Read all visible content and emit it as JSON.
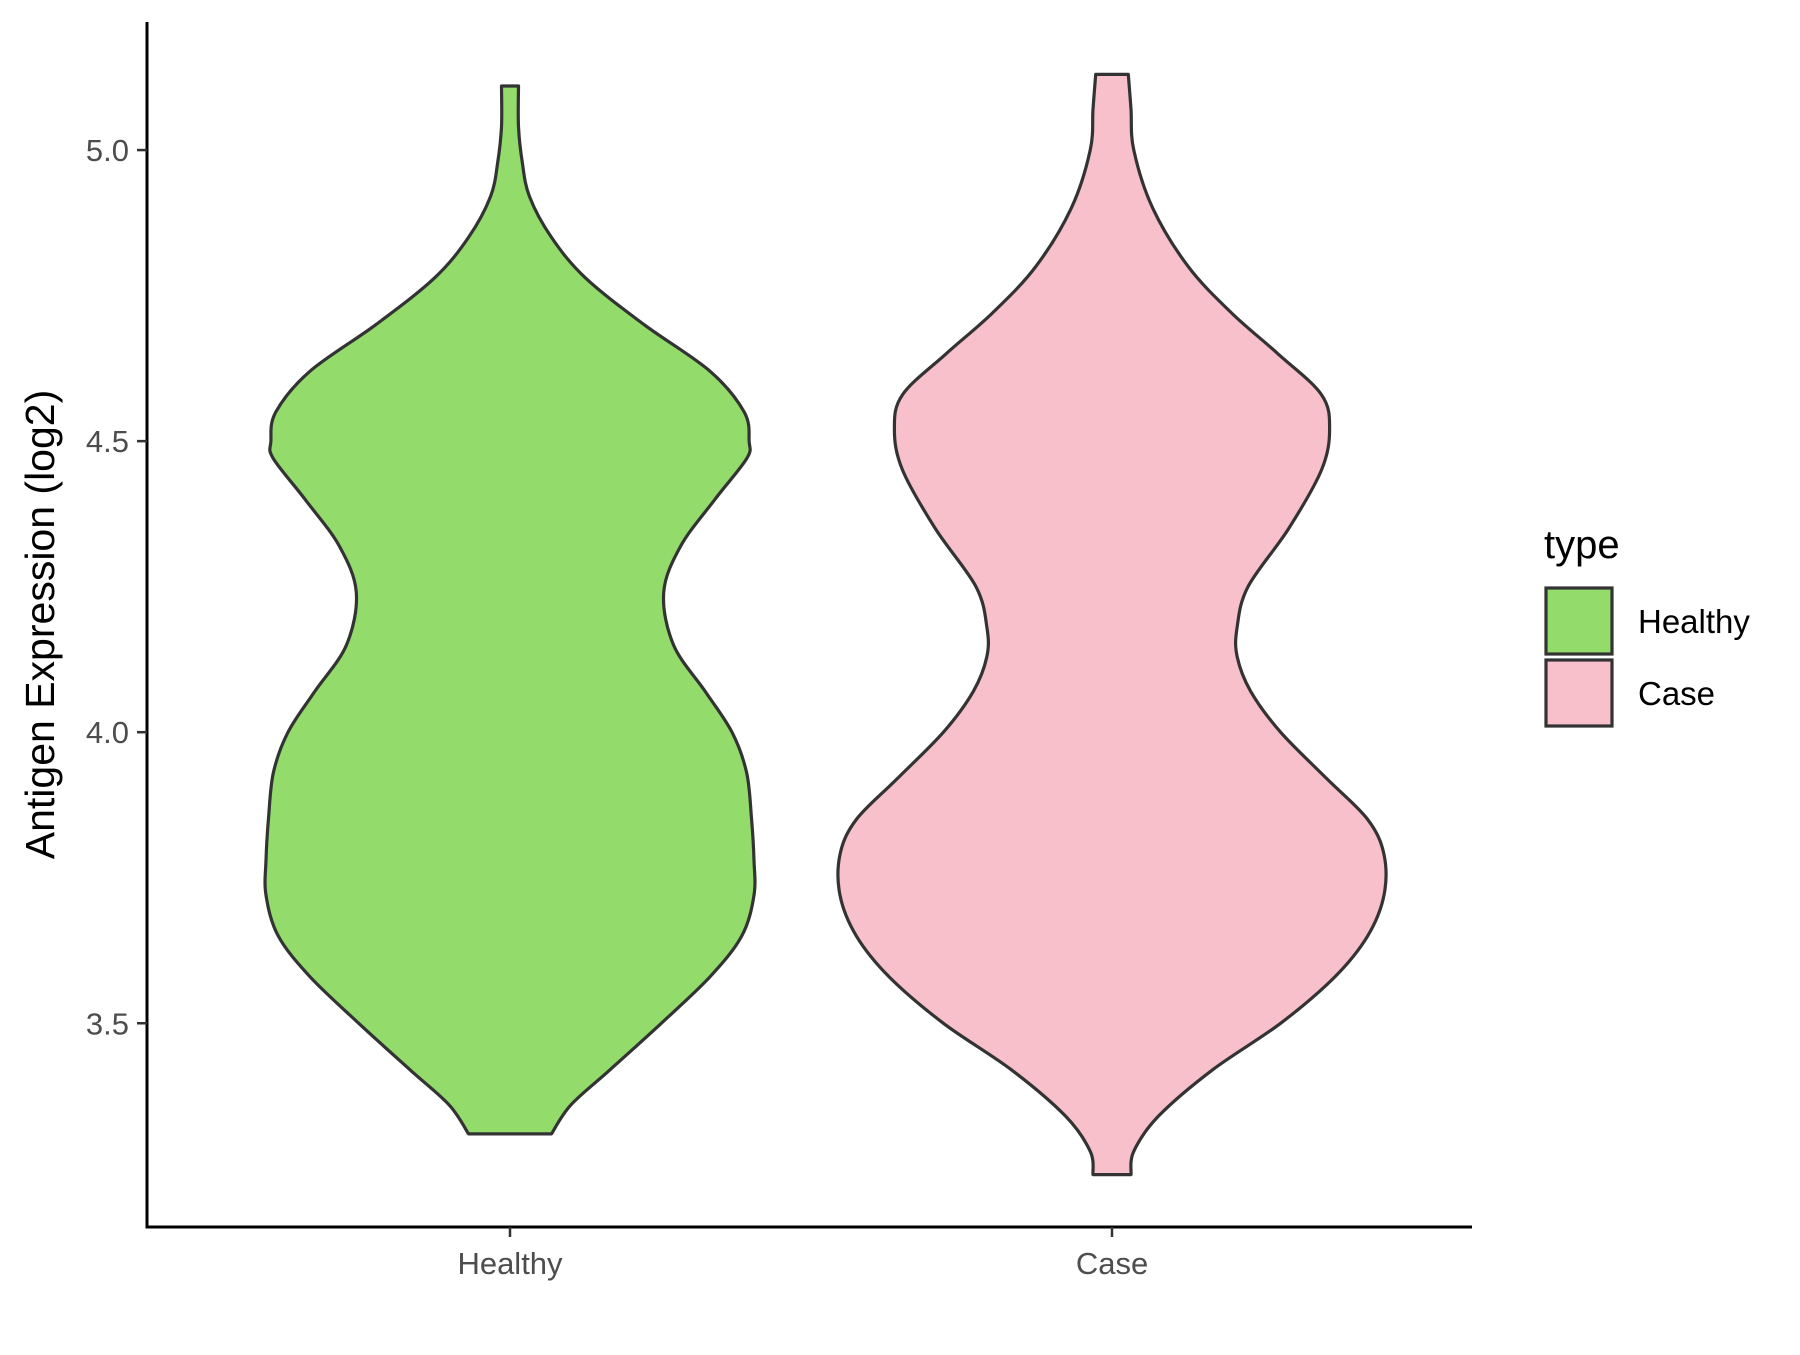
{
  "chart_data": {
    "type": "violin",
    "title": "",
    "xlabel": "",
    "ylabel": "Antigen Expression (log2)",
    "ylim": [
      3.15,
      5.22
    ],
    "y_ticks": [
      "3.5",
      "4.0",
      "4.5",
      "5.0"
    ],
    "categories": [
      "Healthy",
      "Case"
    ],
    "grid": false,
    "legend": {
      "title": "type",
      "position": "right",
      "entries": [
        {
          "label": "Healthy",
          "color": "#93dc6c"
        },
        {
          "label": "Case",
          "color": "#f8c0cb"
        }
      ]
    },
    "series": [
      {
        "name": "Healthy",
        "color": "#93dc6c",
        "ymin": 3.31,
        "ymax": 5.11,
        "density_profile": [
          [
            3.31,
            0.17
          ],
          [
            3.36,
            0.25
          ],
          [
            3.42,
            0.41
          ],
          [
            3.5,
            0.62
          ],
          [
            3.58,
            0.82
          ],
          [
            3.65,
            0.95
          ],
          [
            3.72,
            1.0
          ],
          [
            3.78,
            1.0
          ],
          [
            3.85,
            0.99
          ],
          [
            3.93,
            0.97
          ],
          [
            4.0,
            0.91
          ],
          [
            4.07,
            0.8
          ],
          [
            4.15,
            0.67
          ],
          [
            4.24,
            0.63
          ],
          [
            4.32,
            0.7
          ],
          [
            4.4,
            0.84
          ],
          [
            4.47,
            0.97
          ],
          [
            4.5,
            0.98
          ],
          [
            4.55,
            0.96
          ],
          [
            4.62,
            0.82
          ],
          [
            4.7,
            0.55
          ],
          [
            4.78,
            0.31
          ],
          [
            4.85,
            0.17
          ],
          [
            4.92,
            0.08
          ],
          [
            4.98,
            0.05
          ],
          [
            5.04,
            0.035
          ],
          [
            5.11,
            0.035
          ]
        ]
      },
      {
        "name": "Case",
        "color": "#f8c0cb",
        "ymin": 3.24,
        "ymax": 5.13,
        "density_profile": [
          [
            3.24,
            0.07
          ],
          [
            3.28,
            0.08
          ],
          [
            3.34,
            0.17
          ],
          [
            3.42,
            0.37
          ],
          [
            3.5,
            0.62
          ],
          [
            3.58,
            0.82
          ],
          [
            3.65,
            0.94
          ],
          [
            3.72,
            1.0
          ],
          [
            3.79,
            1.0
          ],
          [
            3.85,
            0.94
          ],
          [
            3.92,
            0.79
          ],
          [
            4.0,
            0.62
          ],
          [
            4.07,
            0.51
          ],
          [
            4.13,
            0.46
          ],
          [
            4.18,
            0.46
          ],
          [
            4.25,
            0.5
          ],
          [
            4.35,
            0.65
          ],
          [
            4.45,
            0.77
          ],
          [
            4.52,
            0.8
          ],
          [
            4.58,
            0.77
          ],
          [
            4.65,
            0.61
          ],
          [
            4.72,
            0.44
          ],
          [
            4.8,
            0.28
          ],
          [
            4.9,
            0.15
          ],
          [
            5.0,
            0.08
          ],
          [
            5.07,
            0.07
          ],
          [
            5.13,
            0.06
          ]
        ]
      }
    ]
  }
}
